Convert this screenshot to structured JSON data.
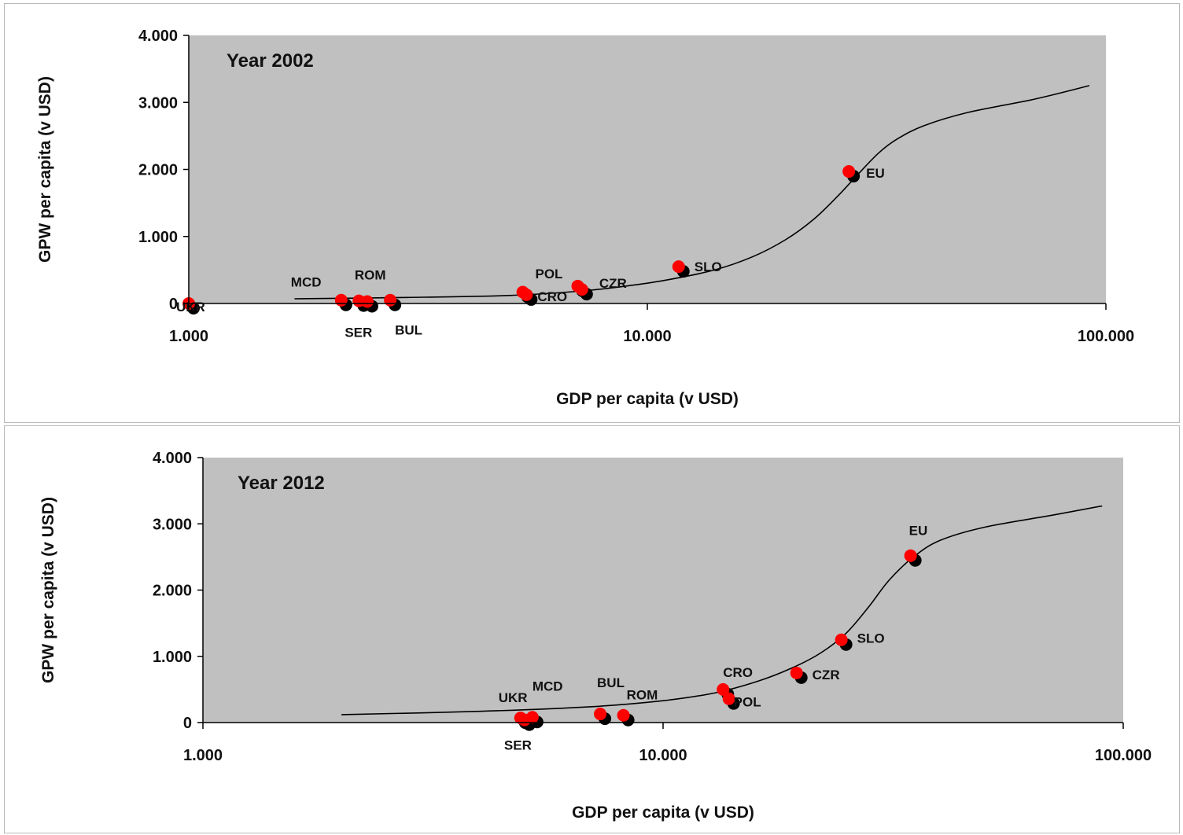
{
  "colors": {
    "plot_bg": "#c0c0c0",
    "point": "#ff0000",
    "shadow": "#000000",
    "curve": "#000000",
    "axis": "#000000"
  },
  "chart_data": [
    {
      "type": "scatter",
      "title": "Year 2002",
      "xlabel": "GDP per capita (v USD)",
      "ylabel": "GPW per capita (v USD)",
      "x_scale": "log",
      "xlim": [
        1000,
        100000
      ],
      "ylim": [
        0,
        4000
      ],
      "x_tick_labels": [
        "1.000",
        "10.000",
        "100.000"
      ],
      "y_tick_labels": [
        "0",
        "1.000",
        "2.000",
        "3.000",
        "4.000"
      ],
      "grid": false,
      "trend_curve": [
        [
          1700,
          70
        ],
        [
          3000,
          90
        ],
        [
          5000,
          120
        ],
        [
          7000,
          180
        ],
        [
          9000,
          260
        ],
        [
          11000,
          350
        ],
        [
          14000,
          500
        ],
        [
          17000,
          700
        ],
        [
          20000,
          950
        ],
        [
          23000,
          1250
        ],
        [
          26000,
          1600
        ],
        [
          29000,
          1950
        ],
        [
          32000,
          2250
        ],
        [
          35000,
          2450
        ],
        [
          40000,
          2650
        ],
        [
          50000,
          2850
        ],
        [
          70000,
          3050
        ],
        [
          92000,
          3250
        ]
      ],
      "points": [
        {
          "label": "UKR",
          "x": 1000,
          "y": 0
        },
        {
          "label": "MCD",
          "x": 2150,
          "y": 50
        },
        {
          "label": "SER",
          "x": 2350,
          "y": 40
        },
        {
          "label": "ROM",
          "x": 2450,
          "y": 30
        },
        {
          "label": "BUL",
          "x": 2750,
          "y": 50
        },
        {
          "label": "",
          "x": 5350,
          "y": 170
        },
        {
          "label": "CRO",
          "x": 5450,
          "y": 130
        },
        {
          "label": "POL",
          "x": 7050,
          "y": 260
        },
        {
          "label": "CZR",
          "x": 7200,
          "y": 210
        },
        {
          "label": "SLO",
          "x": 11700,
          "y": 550
        },
        {
          "label": "EU",
          "x": 27500,
          "y": 1970
        }
      ]
    },
    {
      "type": "scatter",
      "title": "Year 2012",
      "xlabel": "GDP per capita (v USD)",
      "ylabel": "GPW per capita (v USD)",
      "x_scale": "log",
      "xlim": [
        1000,
        100000
      ],
      "ylim": [
        0,
        4000
      ],
      "x_tick_labels": [
        "1.000",
        "10.000",
        "100.000"
      ],
      "y_tick_labels": [
        "0",
        "1.000",
        "2.000",
        "3.000",
        "4.000"
      ],
      "grid": false,
      "trend_curve": [
        [
          2000,
          120
        ],
        [
          4000,
          170
        ],
        [
          7000,
          240
        ],
        [
          10000,
          330
        ],
        [
          13000,
          450
        ],
        [
          16000,
          620
        ],
        [
          19000,
          820
        ],
        [
          22000,
          1050
        ],
        [
          25000,
          1350
        ],
        [
          28000,
          1750
        ],
        [
          31000,
          2150
        ],
        [
          35000,
          2500
        ],
        [
          40000,
          2750
        ],
        [
          50000,
          2950
        ],
        [
          70000,
          3130
        ],
        [
          90000,
          3270
        ]
      ],
      "points": [
        {
          "label": "UKR",
          "x": 4900,
          "y": 70
        },
        {
          "label": "SER",
          "x": 5000,
          "y": 40
        },
        {
          "label": "MCD",
          "x": 5200,
          "y": 80
        },
        {
          "label": "BUL",
          "x": 7300,
          "y": 130
        },
        {
          "label": "ROM",
          "x": 8200,
          "y": 110
        },
        {
          "label": "CRO",
          "x": 13500,
          "y": 500
        },
        {
          "label": "POL",
          "x": 13900,
          "y": 360
        },
        {
          "label": "CZR",
          "x": 19500,
          "y": 750
        },
        {
          "label": "SLO",
          "x": 24400,
          "y": 1250
        },
        {
          "label": "EU",
          "x": 34500,
          "y": 2520
        }
      ]
    }
  ]
}
